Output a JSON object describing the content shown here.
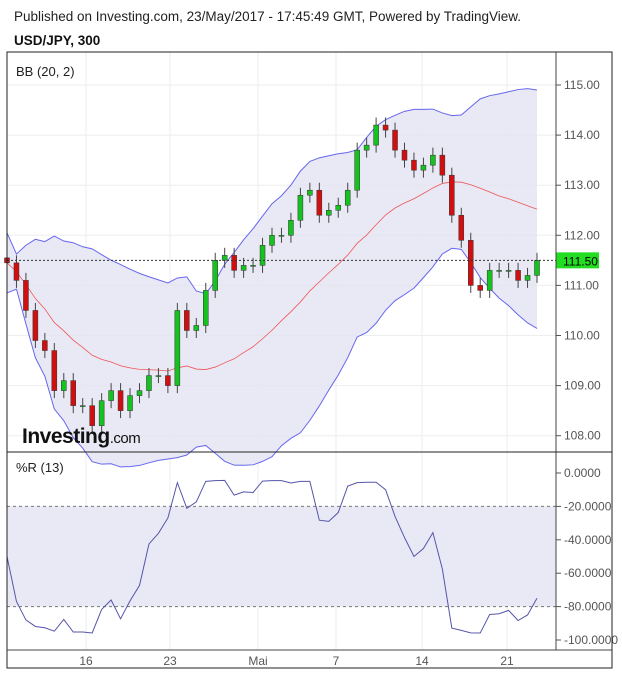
{
  "header": {
    "published": "Published on Investing.com, 23/May/2017 - 17:45:49 GMT, Powered by TradingView.",
    "symbol": "USD/JPY, 300"
  },
  "logo": {
    "text_bold": "Investing",
    "text_light": ".com"
  },
  "colors": {
    "up": "#16c21f",
    "down": "#d01010",
    "band_fill": "#e3e3f3",
    "band_line": "#6666ee",
    "mid_line": "#ee5555",
    "wr_line": "#5555aa",
    "last_price_bg": "#22dd22"
  },
  "chart_data": [
    {
      "type": "candlestick",
      "indicator": "BB (20, 2)",
      "ylim": [
        107.7,
        115.6
      ],
      "yticks": [
        "115.00",
        "114.00",
        "113.00",
        "112.00",
        "111.00",
        "110.00",
        "109.00",
        "108.00"
      ],
      "last_price": "111.50",
      "x_labels": [
        "16",
        "23",
        "Mai",
        "7",
        "14",
        "21"
      ],
      "closes": [
        111.45,
        111.1,
        110.5,
        109.9,
        109.7,
        108.9,
        109.1,
        108.6,
        108.6,
        108.2,
        108.7,
        108.9,
        108.5,
        108.8,
        108.9,
        109.2,
        109.2,
        109.0,
        110.5,
        110.1,
        110.2,
        110.9,
        111.5,
        111.6,
        111.3,
        111.4,
        111.4,
        111.8,
        112.0,
        112.0,
        112.3,
        112.8,
        112.9,
        112.4,
        112.5,
        112.6,
        112.9,
        113.7,
        113.8,
        114.2,
        114.1,
        113.7,
        113.5,
        113.3,
        113.4,
        113.6,
        113.2,
        112.4,
        111.9,
        111.0,
        110.9,
        111.3,
        111.3,
        111.3,
        111.1,
        111.2,
        111.5
      ]
    },
    {
      "type": "line",
      "indicator": "%R (13)",
      "ylim": [
        -110,
        5
      ],
      "yticks": [
        "0.0000",
        "-20.0000",
        "-40.0000",
        "-60.0000",
        "-80.0000",
        "-100.0000"
      ],
      "levels": [
        -20,
        -80
      ]
    }
  ]
}
